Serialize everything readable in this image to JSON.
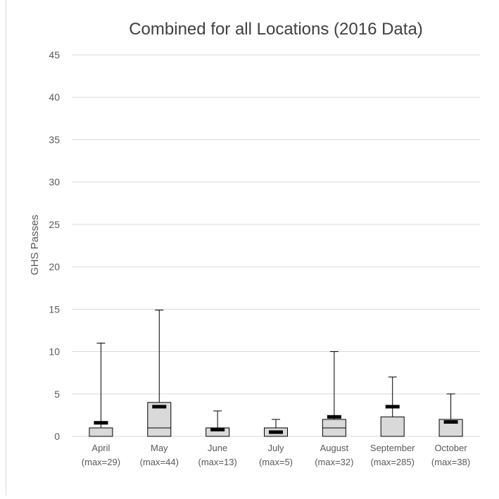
{
  "chart_data": {
    "type": "box",
    "title": "Combined for all Locations (2016 Data)",
    "xlabel": "",
    "ylabel": "GHS Passes",
    "ylim": [
      0,
      45
    ],
    "yticks": [
      0,
      5,
      10,
      15,
      20,
      25,
      30,
      35,
      40,
      45
    ],
    "grid": true,
    "categories": [
      {
        "name": "April",
        "sub": "(max=29)",
        "min": 0,
        "q1": 0,
        "median": 0,
        "q3": 1,
        "whisker_top": 11,
        "mean": 1.6
      },
      {
        "name": "May",
        "sub": "(max=44)",
        "min": 0,
        "q1": 0,
        "median": 1,
        "q3": 4,
        "whisker_top": 14.9,
        "mean": 3.5
      },
      {
        "name": "June",
        "sub": "(max=13)",
        "min": 0,
        "q1": 0,
        "median": 0,
        "q3": 1,
        "whisker_top": 3,
        "mean": 0.8
      },
      {
        "name": "July",
        "sub": "(max=5)",
        "min": 0,
        "q1": 0,
        "median": 0,
        "q3": 1,
        "whisker_top": 2,
        "mean": 0.5
      },
      {
        "name": "August",
        "sub": "(max=32)",
        "min": 0,
        "q1": 0,
        "median": 1,
        "q3": 2,
        "whisker_top": 10,
        "mean": 2.3
      },
      {
        "name": "September",
        "sub": "(max=285)",
        "min": 0,
        "q1": 0,
        "median": 0,
        "q3": 2.3,
        "whisker_top": 7,
        "mean": 3.5
      },
      {
        "name": "October",
        "sub": "(max=38)",
        "min": 0,
        "q1": 0,
        "median": 0,
        "q3": 2,
        "whisker_top": 5,
        "mean": 1.7
      }
    ],
    "colors": {
      "box_fill": "#d9d9d9",
      "box_stroke": "#000000",
      "mean_marker": "#000000",
      "grid": "#d9d9d9",
      "axis_text": "#595959",
      "title_text": "#404040"
    }
  }
}
